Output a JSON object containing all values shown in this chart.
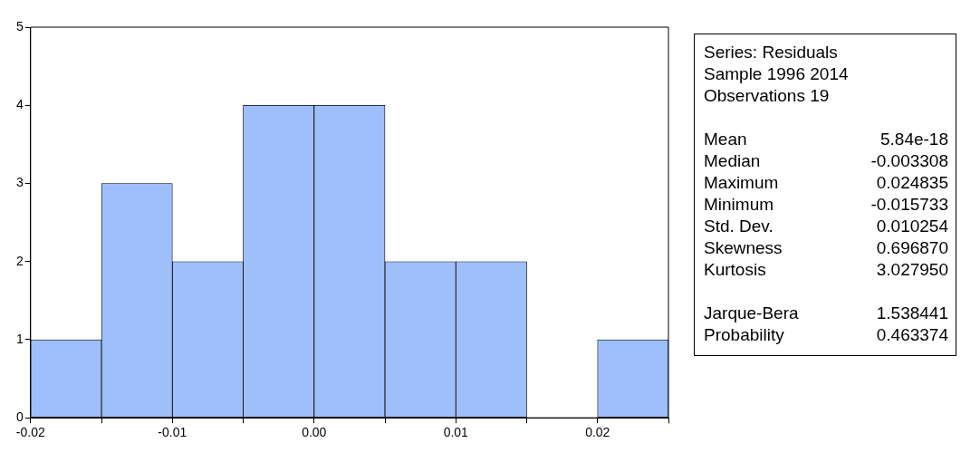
{
  "chart_data": {
    "type": "histogram",
    "bins": [
      -0.02,
      -0.015,
      -0.01,
      -0.005,
      0,
      0.005,
      0.01,
      0.015,
      0.02,
      0.025
    ],
    "values": [
      1,
      3,
      2,
      4,
      4,
      2,
      2,
      0,
      1
    ],
    "color": "#9ebffa",
    "xlim": [
      -0.02,
      0.025
    ],
    "xticks": [
      {
        "value": -0.02,
        "label": "-0.02"
      },
      {
        "value": -0.015,
        "label": null
      },
      {
        "value": -0.01,
        "label": "-0.01"
      },
      {
        "value": -0.005,
        "label": null
      },
      {
        "value": 0,
        "label": "0.00"
      },
      {
        "value": 0.005,
        "label": null
      },
      {
        "value": 0.01,
        "label": "0.01"
      },
      {
        "value": 0.015,
        "label": null
      },
      {
        "value": 0.02,
        "label": "0.02"
      },
      {
        "value": 0.025,
        "label": null
      }
    ],
    "ylim": [
      0,
      5
    ],
    "yticks": [
      0,
      1,
      2,
      3,
      4,
      5
    ],
    "grid": false,
    "legend": false,
    "annotations": [
      "Series: Residuals",
      "Sample 1996 2014",
      "Observations 19",
      "Mean",
      "5.84e-18",
      "Median",
      "-0.003308",
      "Maximum",
      "0.024835",
      "Minimum",
      "-0.015733",
      "Std. Dev.",
      "0.010254",
      "Skewness",
      "0.696870",
      "Kurtosis",
      "3.027950",
      "Jarque-Bera",
      "1.538441",
      "Probability",
      "0.463374"
    ]
  }
}
